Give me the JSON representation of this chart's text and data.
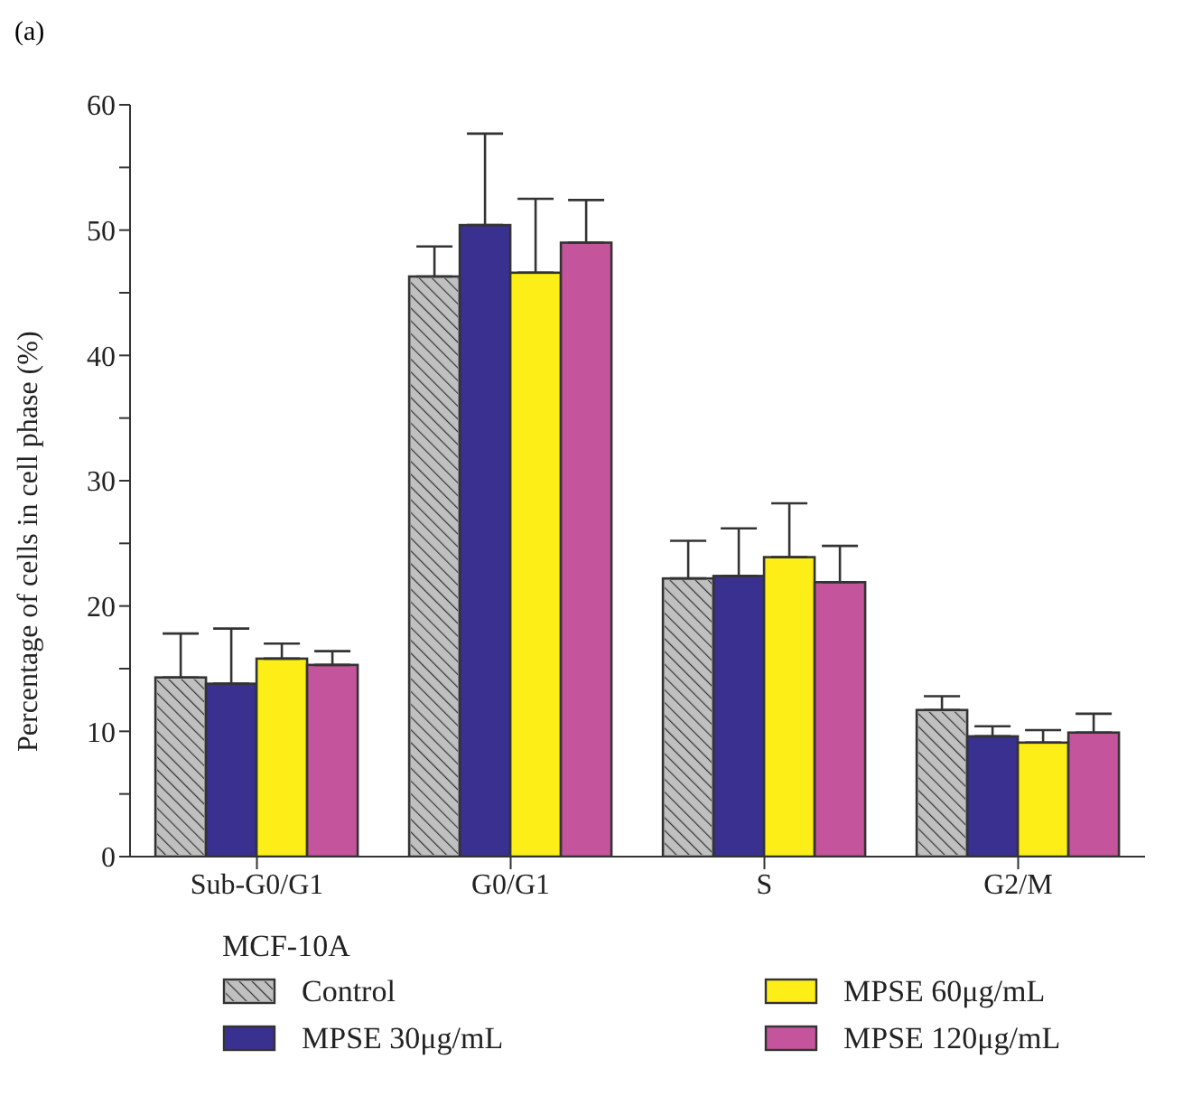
{
  "chart_data": {
    "type": "bar",
    "ylabel": "Percentage of cells in cell phase (%)",
    "legend_title": "MCF-10A",
    "annotations": [
      "(a)"
    ],
    "categories": [
      "Sub-G0/G1",
      "G0/G1",
      "S",
      "G2/M"
    ],
    "series": [
      {
        "name": "Control",
        "color": "#c0c0c0",
        "values": [
          14.3,
          46.3,
          22.2,
          11.7
        ],
        "errors": [
          [
            14.3,
            17.8
          ],
          [
            46.3,
            48.7
          ],
          [
            22.2,
            25.2
          ],
          [
            11.7,
            12.8
          ]
        ]
      },
      {
        "name": "MPSE 30μg/mL",
        "color": "#3a3090",
        "values": [
          13.8,
          50.4,
          22.4,
          9.6
        ],
        "errors": [
          [
            13.8,
            18.2
          ],
          [
            50.4,
            57.7
          ],
          [
            22.4,
            26.2
          ],
          [
            9.6,
            10.4
          ]
        ]
      },
      {
        "name": "MPSE 60μg/mL",
        "color": "#fcee16",
        "values": [
          15.8,
          46.6,
          23.9,
          9.1
        ],
        "errors": [
          [
            15.8,
            17.0
          ],
          [
            46.6,
            52.5
          ],
          [
            23.9,
            28.2
          ],
          [
            9.1,
            10.1
          ]
        ]
      },
      {
        "name": "MPSE 120μg/mL",
        "color": "#c4549c",
        "values": [
          15.3,
          49.0,
          21.9,
          9.9
        ],
        "errors": [
          [
            15.3,
            16.4
          ],
          [
            49.0,
            52.4
          ],
          [
            21.9,
            24.8
          ],
          [
            9.9,
            11.4
          ]
        ]
      }
    ],
    "ylim": [
      0,
      60
    ],
    "yticks": [
      0,
      {
        "value": 5,
        "label": null
      },
      10,
      {
        "value": 15,
        "label": null
      },
      20,
      {
        "value": 25,
        "label": null
      },
      30,
      {
        "value": 35,
        "label": null
      },
      40,
      {
        "value": 45,
        "label": null
      },
      50,
      {
        "value": 55,
        "label": null
      },
      60
    ],
    "grid": false,
    "legend": "bottom"
  }
}
